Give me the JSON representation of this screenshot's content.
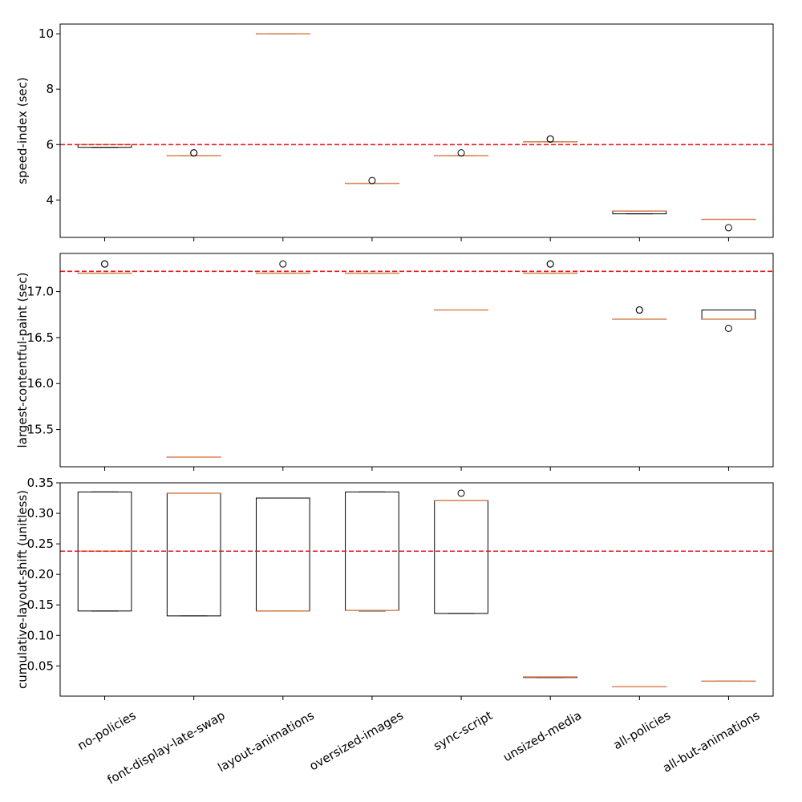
{
  "categories": [
    "no-policies",
    "font-display-late-swap",
    "layout-animations",
    "oversized-images",
    "sync-script",
    "unsized-media",
    "all-policies",
    "all-but-animations"
  ],
  "colors": {
    "box": "#000000",
    "median": "#dd8452",
    "reference": "#e41a1c"
  },
  "chart_data": [
    {
      "type": "box",
      "ylabel": "speed-index (sec)",
      "ylim": [
        2.65,
        10.35
      ],
      "yticks": [
        4,
        6,
        8,
        10
      ],
      "ytick_labels": [
        "4",
        "6",
        "8",
        "10"
      ],
      "reference_line": 6.0,
      "boxes": [
        {
          "category": "no-policies",
          "whislo": 5.9,
          "q1": 5.9,
          "med": 6.0,
          "q3": 6.0,
          "whishi": 6.0,
          "fliers": []
        },
        {
          "category": "font-display-late-swap",
          "whislo": 5.6,
          "q1": 5.6,
          "med": 5.6,
          "q3": 5.6,
          "whishi": 5.6,
          "fliers": [
            5.7,
            5.7
          ]
        },
        {
          "category": "layout-animations",
          "whislo": 10.0,
          "q1": 10.0,
          "med": 10.0,
          "q3": 10.0,
          "whishi": 10.0,
          "fliers": []
        },
        {
          "category": "oversized-images",
          "whislo": 4.6,
          "q1": 4.6,
          "med": 4.6,
          "q3": 4.6,
          "whishi": 4.6,
          "fliers": [
            4.7
          ]
        },
        {
          "category": "sync-script",
          "whislo": 5.6,
          "q1": 5.6,
          "med": 5.6,
          "q3": 5.6,
          "whishi": 5.6,
          "fliers": [
            5.7
          ]
        },
        {
          "category": "unsized-media",
          "whislo": 6.1,
          "q1": 6.1,
          "med": 6.1,
          "q3": 6.1,
          "whishi": 6.1,
          "fliers": [
            6.2,
            6.2
          ]
        },
        {
          "category": "all-policies",
          "whislo": 3.5,
          "q1": 3.5,
          "med": 3.6,
          "q3": 3.6,
          "whishi": 3.6,
          "fliers": []
        },
        {
          "category": "all-but-animations",
          "whislo": 3.3,
          "q1": 3.3,
          "med": 3.3,
          "q3": 3.3,
          "whishi": 3.3,
          "fliers": [
            3.0
          ]
        }
      ]
    },
    {
      "type": "box",
      "ylabel": "largest-contentful-paint (sec)",
      "ylim": [
        15.095,
        17.415
      ],
      "yticks": [
        15.5,
        16.0,
        16.5,
        17.0
      ],
      "ytick_labels": [
        "15.5",
        "16.0",
        "16.5",
        "17.0"
      ],
      "reference_line": 17.22,
      "boxes": [
        {
          "category": "no-policies",
          "whislo": 17.2,
          "q1": 17.2,
          "med": 17.2,
          "q3": 17.2,
          "whishi": 17.2,
          "fliers": [
            17.3,
            17.3
          ]
        },
        {
          "category": "font-display-late-swap",
          "whislo": 15.2,
          "q1": 15.2,
          "med": 15.2,
          "q3": 15.2,
          "whishi": 15.2,
          "fliers": []
        },
        {
          "category": "layout-animations",
          "whislo": 17.2,
          "q1": 17.2,
          "med": 17.2,
          "q3": 17.2,
          "whishi": 17.2,
          "fliers": [
            17.3
          ]
        },
        {
          "category": "oversized-images",
          "whislo": 17.2,
          "q1": 17.2,
          "med": 17.2,
          "q3": 17.2,
          "whishi": 17.2,
          "fliers": []
        },
        {
          "category": "sync-script",
          "whislo": 16.8,
          "q1": 16.8,
          "med": 16.8,
          "q3": 16.8,
          "whishi": 16.8,
          "fliers": []
        },
        {
          "category": "unsized-media",
          "whislo": 17.2,
          "q1": 17.2,
          "med": 17.2,
          "q3": 17.2,
          "whishi": 17.2,
          "fliers": [
            17.3,
            17.3
          ]
        },
        {
          "category": "all-policies",
          "whislo": 16.7,
          "q1": 16.7,
          "med": 16.7,
          "q3": 16.7,
          "whishi": 16.7,
          "fliers": [
            16.8,
            16.8
          ]
        },
        {
          "category": "all-but-animations",
          "whislo": 16.7,
          "q1": 16.7,
          "med": 16.7,
          "q3": 16.8,
          "whishi": 16.8,
          "fliers": [
            16.6
          ]
        }
      ]
    },
    {
      "type": "box",
      "ylabel": "cumulative-layout-shift (unitless)",
      "ylim": [
        0.0005,
        0.35
      ],
      "yticks": [
        0.05,
        0.1,
        0.15,
        0.2,
        0.25,
        0.3,
        0.35
      ],
      "ytick_labels": [
        "0.05",
        "0.10",
        "0.15",
        "0.20",
        "0.25",
        "0.30",
        "0.35"
      ],
      "reference_line": 0.238,
      "boxes": [
        {
          "category": "no-policies",
          "whislo": 0.14,
          "q1": 0.14,
          "med": 0.238,
          "q3": 0.335,
          "whishi": 0.335,
          "fliers": []
        },
        {
          "category": "font-display-late-swap",
          "whislo": 0.132,
          "q1": 0.132,
          "med": 0.333,
          "q3": 0.333,
          "whishi": 0.333,
          "fliers": []
        },
        {
          "category": "layout-animations",
          "whislo": 0.14,
          "q1": 0.14,
          "med": 0.14,
          "q3": 0.325,
          "whishi": 0.325,
          "fliers": []
        },
        {
          "category": "oversized-images",
          "whislo": 0.14,
          "q1": 0.141,
          "med": 0.141,
          "q3": 0.335,
          "whishi": 0.335,
          "fliers": []
        },
        {
          "category": "sync-script",
          "whislo": 0.136,
          "q1": 0.136,
          "med": 0.321,
          "q3": 0.321,
          "whishi": 0.321,
          "fliers": [
            0.333
          ]
        },
        {
          "category": "unsized-media",
          "whislo": 0.031,
          "q1": 0.031,
          "med": 0.032,
          "q3": 0.032,
          "whishi": 0.032,
          "fliers": []
        },
        {
          "category": "all-policies",
          "whislo": 0.016,
          "q1": 0.016,
          "med": 0.016,
          "q3": 0.016,
          "whishi": 0.016,
          "fliers": []
        },
        {
          "category": "all-but-animations",
          "whislo": 0.025,
          "q1": 0.025,
          "med": 0.025,
          "q3": 0.025,
          "whishi": 0.025,
          "fliers": []
        }
      ]
    }
  ]
}
